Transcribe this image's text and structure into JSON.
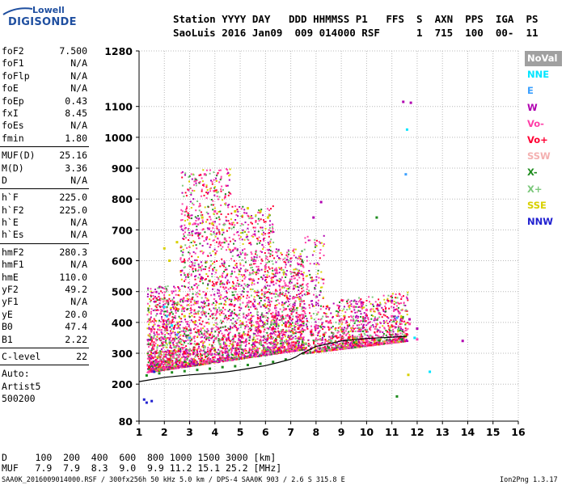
{
  "logo": {
    "line1": "Lowell",
    "line2": "DIGISONDE"
  },
  "header": {
    "line1": "Station YYYY DAY   DDD HHMMSS P1   FFS  S  AXN  PPS  IGA  PS",
    "line2": "SaoLuis 2016 Jan09  009 014000 RSF      1  715  100  00-  11"
  },
  "params": [
    {
      "name": "foF2",
      "value": "7.500"
    },
    {
      "name": "foF1",
      "value": "N/A"
    },
    {
      "name": "foFlp",
      "value": "N/A"
    },
    {
      "name": "foE",
      "value": "N/A"
    },
    {
      "name": "foEp",
      "value": "0.43"
    },
    {
      "name": "fxI",
      "value": "8.45"
    },
    {
      "name": "foEs",
      "value": "N/A"
    },
    {
      "name": "fmin",
      "value": "1.80"
    },
    {
      "name": "MUF(D)",
      "value": "25.16"
    },
    {
      "name": "M(D)",
      "value": "3.36"
    },
    {
      "name": "D",
      "value": "N/A"
    },
    {
      "name": "h`F",
      "value": "225.0"
    },
    {
      "name": "h`F2",
      "value": "225.0"
    },
    {
      "name": "h`E",
      "value": "N/A"
    },
    {
      "name": "h`Es",
      "value": "N/A"
    },
    {
      "name": "hmF2",
      "value": "280.3"
    },
    {
      "name": "hmF1",
      "value": "N/A"
    },
    {
      "name": "hmE",
      "value": "110.0"
    },
    {
      "name": "yF2",
      "value": "49.2"
    },
    {
      "name": "yF1",
      "value": "N/A"
    },
    {
      "name": "yE",
      "value": "20.0"
    },
    {
      "name": "B0",
      "value": "47.4"
    },
    {
      "name": "B1",
      "value": "2.22"
    },
    {
      "name": "C-level",
      "value": "22"
    }
  ],
  "auto": {
    "line1": "Auto:",
    "line2": "Artist5",
    "line3": "500200"
  },
  "legend": [
    {
      "label": "NoVal",
      "bg": "#a0a0a0",
      "fg": "#ffffff"
    },
    {
      "label": "NNE",
      "bg": "#ffffff",
      "fg": "#00e5ff"
    },
    {
      "label": "E",
      "bg": "#ffffff",
      "fg": "#3aa0ff"
    },
    {
      "label": "W",
      "bg": "#ffffff",
      "fg": "#b000b0"
    },
    {
      "label": "Vo-",
      "bg": "#ffffff",
      "fg": "#ff3fa8"
    },
    {
      "label": "Vo+",
      "bg": "#ffffff",
      "fg": "#ff0033"
    },
    {
      "label": "SSW",
      "bg": "#ffffff",
      "fg": "#f4b0b0"
    },
    {
      "label": "X-",
      "bg": "#ffffff",
      "fg": "#1e8c1e"
    },
    {
      "label": "X+",
      "bg": "#ffffff",
      "fg": "#7cc87c"
    },
    {
      "label": "SSE",
      "bg": "#ffffff",
      "fg": "#d8d000"
    },
    {
      "label": "NNW",
      "bg": "#ffffff",
      "fg": "#2020d0"
    }
  ],
  "bottom": {
    "d_line": "D     100  200  400  600  800 1000 1500 3000 [km]",
    "muf_line": "MUF   7.9  7.9  8.3  9.0  9.9 11.2 15.1 25.2 [MHz]",
    "footer_left": "SAA0K_2016009014000.RSF / 300fx256h 50 kHz 5.0 km / DPS-4 SAA0K 903 / 2.6 S 315.8 E",
    "footer_right": "Ion2Png 1.3.17"
  },
  "chart_data": {
    "type": "scatter",
    "title": "",
    "xlabel": "",
    "ylabel": "",
    "xlim": [
      1,
      16
    ],
    "ylim": [
      80,
      1280
    ],
    "x_ticks": [
      1,
      2,
      3,
      4,
      5,
      6,
      7,
      8,
      9,
      10,
      11,
      12,
      13,
      14,
      15,
      16
    ],
    "y_ticks": [
      80,
      200,
      300,
      400,
      500,
      600,
      700,
      800,
      900,
      1000,
      1100,
      1280
    ],
    "grid": true,
    "trace_curve": {
      "x": [
        1.0,
        1.5,
        2.0,
        2.5,
        3.0,
        3.5,
        4.0,
        4.5,
        5.0,
        5.5,
        6.0,
        6.5,
        7.0,
        7.2,
        7.35,
        8.0,
        9.0,
        10.0,
        11.0,
        11.6
      ],
      "y": [
        208,
        215,
        222,
        226,
        230,
        233,
        236,
        240,
        246,
        253,
        260,
        270,
        281,
        288,
        296,
        322,
        340,
        348,
        352,
        355
      ]
    },
    "series": [
      {
        "name": "W",
        "color": "#b000b0",
        "points": [
          [
            11.45,
            1115
          ],
          [
            11.75,
            1112
          ],
          [
            11.0,
            470
          ],
          [
            10.5,
            455
          ],
          [
            9.8,
            465
          ],
          [
            8.2,
            790
          ],
          [
            7.9,
            740
          ],
          [
            13.8,
            340
          ],
          [
            12.0,
            380
          ],
          [
            11.7,
            410
          ]
        ]
      },
      {
        "name": "Vo-",
        "color": "#ff3fa8",
        "points": [
          [
            3.2,
            720
          ],
          [
            3.6,
            880
          ],
          [
            4.0,
            760
          ],
          [
            4.4,
            670
          ],
          [
            4.8,
            640
          ],
          [
            5.2,
            620
          ],
          [
            5.6,
            600
          ],
          [
            6.0,
            580
          ],
          [
            6.4,
            570
          ],
          [
            6.8,
            520
          ],
          [
            7.1,
            480
          ],
          [
            7.5,
            420
          ],
          [
            8.0,
            390
          ],
          [
            8.5,
            400
          ],
          [
            9.0,
            410
          ],
          [
            9.5,
            450
          ],
          [
            10.0,
            440
          ],
          [
            10.5,
            430
          ],
          [
            11.0,
            420
          ],
          [
            11.3,
            430
          ],
          [
            11.7,
            395
          ],
          [
            12.0,
            345
          ]
        ]
      },
      {
        "name": "Vo+",
        "color": "#ff0033",
        "points": [
          [
            1.4,
            255
          ],
          [
            2.2,
            280
          ],
          [
            2.8,
            300
          ],
          [
            3.3,
            330
          ],
          [
            3.8,
            360
          ],
          [
            4.3,
            345
          ],
          [
            4.8,
            355
          ],
          [
            5.3,
            360
          ],
          [
            5.8,
            370
          ],
          [
            6.3,
            380
          ],
          [
            6.8,
            390
          ],
          [
            7.3,
            380
          ],
          [
            7.8,
            370
          ],
          [
            8.3,
            360
          ],
          [
            8.8,
            355
          ],
          [
            9.3,
            350
          ],
          [
            9.8,
            345
          ],
          [
            10.3,
            345
          ]
        ]
      },
      {
        "name": "SSE",
        "color": "#d8d000",
        "points": [
          [
            2.0,
            640
          ],
          [
            2.2,
            600
          ],
          [
            2.5,
            660
          ],
          [
            3.0,
            720
          ],
          [
            3.5,
            740
          ],
          [
            3.9,
            720
          ],
          [
            4.3,
            700
          ],
          [
            4.8,
            760
          ],
          [
            5.3,
            770
          ],
          [
            5.8,
            760
          ],
          [
            6.1,
            740
          ],
          [
            2.8,
            420
          ],
          [
            3.2,
            400
          ],
          [
            11.65,
            230
          ]
        ]
      },
      {
        "name": "X-",
        "color": "#1e8c1e",
        "points": [
          [
            1.3,
            228
          ],
          [
            1.8,
            235
          ],
          [
            2.3,
            238
          ],
          [
            2.8,
            242
          ],
          [
            3.3,
            246
          ],
          [
            3.8,
            250
          ],
          [
            4.3,
            255
          ],
          [
            4.8,
            258
          ],
          [
            5.3,
            262
          ],
          [
            5.8,
            266
          ],
          [
            6.3,
            272
          ],
          [
            6.8,
            280
          ],
          [
            7.5,
            300
          ],
          [
            8.5,
            318
          ],
          [
            9.5,
            335
          ],
          [
            10.5,
            342
          ],
          [
            11.4,
            345
          ],
          [
            11.2,
            160
          ],
          [
            10.4,
            740
          ]
        ]
      },
      {
        "name": "X+",
        "color": "#7cc87c",
        "points": [
          [
            1.8,
            300
          ],
          [
            2.4,
            320
          ],
          [
            3.0,
            310
          ],
          [
            3.6,
            320
          ],
          [
            4.2,
            330
          ],
          [
            5.0,
            320
          ],
          [
            5.8,
            330
          ],
          [
            6.6,
            340
          ],
          [
            7.6,
            330
          ],
          [
            8.6,
            340
          ],
          [
            9.6,
            350
          ]
        ]
      },
      {
        "name": "NNE",
        "color": "#00e5ff",
        "points": [
          [
            2.0,
            450
          ],
          [
            2.3,
            390
          ],
          [
            11.6,
            1025
          ],
          [
            12.5,
            240
          ],
          [
            11.9,
            350
          ]
        ]
      },
      {
        "name": "E",
        "color": "#3aa0ff",
        "points": [
          [
            2.1,
            420
          ],
          [
            2.5,
            360
          ],
          [
            3.0,
            350
          ],
          [
            11.55,
            880
          ],
          [
            11.2,
            415
          ]
        ]
      },
      {
        "name": "NNW",
        "color": "#2020d0",
        "points": [
          [
            1.3,
            140
          ],
          [
            1.5,
            145
          ],
          [
            1.2,
            150
          ],
          [
            1.6,
            240
          ]
        ]
      },
      {
        "name": "SSW",
        "color": "#f4b0b0",
        "points": [
          [
            2.0,
            470
          ],
          [
            3.5,
            430
          ],
          [
            6.0,
            420
          ],
          [
            9.0,
            400
          ]
        ]
      }
    ]
  }
}
